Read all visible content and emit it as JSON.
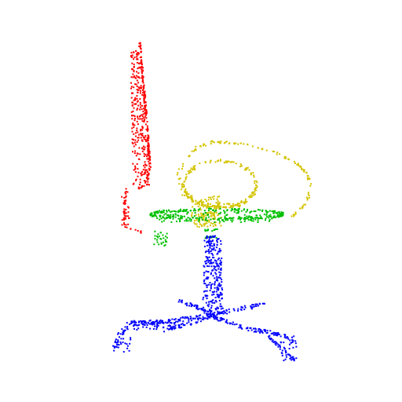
{
  "figure": {
    "background": "#ffffff",
    "subject": "chair-point-cloud",
    "parts": [
      {
        "name": "backrest",
        "color": "#ff0000"
      },
      {
        "name": "armrest",
        "color": "#d4c400"
      },
      {
        "name": "seat",
        "color": "#00c000"
      },
      {
        "name": "base",
        "color": "#0000ff"
      }
    ]
  }
}
